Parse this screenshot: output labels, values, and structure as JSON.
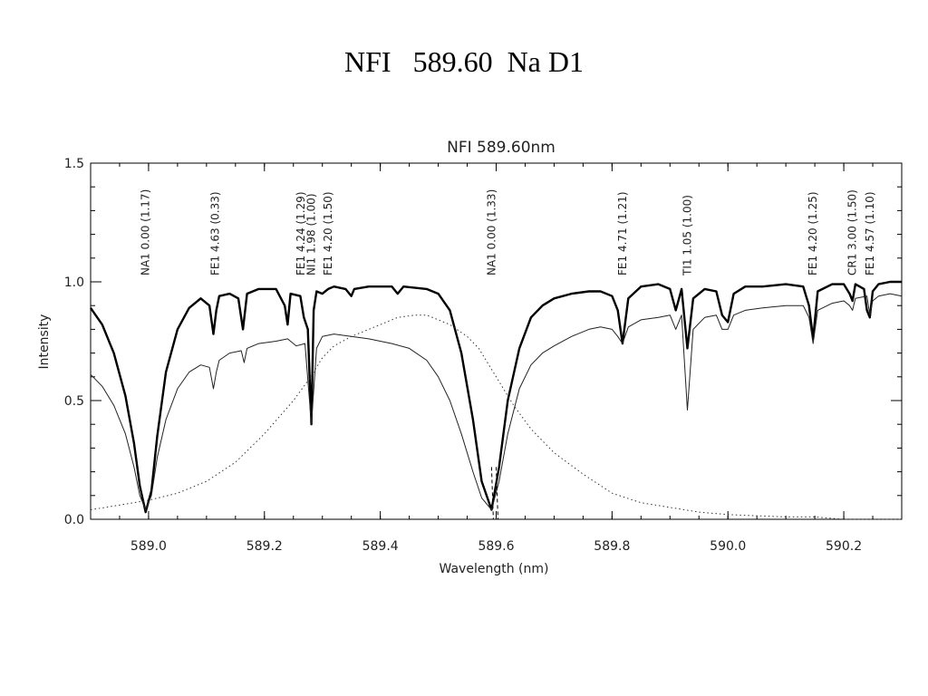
{
  "slide_title": "NFI   589.60  Na D1",
  "chart_data": {
    "type": "line",
    "title": "NFI 589.60nm",
    "xlabel": "Wavelength (nm)",
    "ylabel": "Intensity",
    "xlim": [
      588.9,
      590.3
    ],
    "ylim": [
      0.0,
      1.5
    ],
    "x_ticks": [
      589.0,
      589.2,
      589.4,
      589.6,
      589.8,
      590.0,
      590.2
    ],
    "x_tick_labels": [
      "589.0",
      "589.2",
      "589.4",
      "589.6",
      "589.8",
      "590.0",
      "590.2"
    ],
    "y_ticks": [
      0.0,
      0.5,
      1.0,
      1.5
    ],
    "y_tick_labels": [
      "0.0",
      "0.5",
      "1.0",
      "1.5"
    ],
    "line_annotations": [
      {
        "x": 588.995,
        "label": "NA1 0.00 (1.17)"
      },
      {
        "x": 589.115,
        "label": "FE1 4.63 (0.33)"
      },
      {
        "x": 589.263,
        "label": "FE1 4.24 (1.29)"
      },
      {
        "x": 589.281,
        "label": "NI1 1.98 (1.00)"
      },
      {
        "x": 589.31,
        "label": "FE1 4.20 (1.50)"
      },
      {
        "x": 589.592,
        "label": "NA1 0.00 (1.33)"
      },
      {
        "x": 589.818,
        "label": "FE1 4.71 (1.21)"
      },
      {
        "x": 589.93,
        "label": "TI1 1.05 (1.00)"
      },
      {
        "x": 590.147,
        "label": "FE1 4.20 (1.25)"
      },
      {
        "x": 590.215,
        "label": "CR1 3.00 (1.50)"
      },
      {
        "x": 590.245,
        "label": "FE1 4.57 (1.10)"
      }
    ],
    "series": [
      {
        "style": "thick",
        "x": [
          588.9,
          588.92,
          588.94,
          588.96,
          588.975,
          588.985,
          588.995,
          589.005,
          589.015,
          589.03,
          589.05,
          589.07,
          589.09,
          589.105,
          589.112,
          589.117,
          589.122,
          589.14,
          589.155,
          589.163,
          589.17,
          589.19,
          589.22,
          589.235,
          589.24,
          589.245,
          589.262,
          589.268,
          589.275,
          589.281,
          589.285,
          589.29,
          589.3,
          589.31,
          589.32,
          589.34,
          589.35,
          589.355,
          589.38,
          589.42,
          589.43,
          589.44,
          589.48,
          589.5,
          589.52,
          589.54,
          589.56,
          589.575,
          589.592,
          589.605,
          589.62,
          589.64,
          589.66,
          589.68,
          589.7,
          589.73,
          589.76,
          589.78,
          589.8,
          589.81,
          589.818,
          589.828,
          589.85,
          589.88,
          589.9,
          589.91,
          589.92,
          589.93,
          589.94,
          589.96,
          589.98,
          589.99,
          590.0,
          590.01,
          590.03,
          590.06,
          590.1,
          590.13,
          590.14,
          590.147,
          590.155,
          590.18,
          590.2,
          590.21,
          590.215,
          590.22,
          590.235,
          590.24,
          590.245,
          590.25,
          590.26,
          590.28,
          590.3
        ],
        "y": [
          0.89,
          0.82,
          0.7,
          0.52,
          0.32,
          0.14,
          0.03,
          0.12,
          0.35,
          0.62,
          0.8,
          0.89,
          0.93,
          0.9,
          0.78,
          0.88,
          0.94,
          0.95,
          0.93,
          0.8,
          0.95,
          0.97,
          0.97,
          0.9,
          0.82,
          0.95,
          0.94,
          0.85,
          0.8,
          0.4,
          0.88,
          0.96,
          0.95,
          0.97,
          0.98,
          0.97,
          0.94,
          0.97,
          0.98,
          0.98,
          0.95,
          0.98,
          0.97,
          0.95,
          0.88,
          0.7,
          0.42,
          0.16,
          0.04,
          0.22,
          0.5,
          0.72,
          0.85,
          0.9,
          0.93,
          0.95,
          0.96,
          0.96,
          0.94,
          0.88,
          0.74,
          0.93,
          0.98,
          0.99,
          0.97,
          0.88,
          0.97,
          0.72,
          0.93,
          0.97,
          0.96,
          0.86,
          0.83,
          0.95,
          0.98,
          0.98,
          0.99,
          0.98,
          0.9,
          0.76,
          0.96,
          0.99,
          0.99,
          0.95,
          0.92,
          0.99,
          0.97,
          0.88,
          0.85,
          0.96,
          0.99,
          1.0,
          1.0
        ]
      },
      {
        "style": "thin",
        "x": [
          588.9,
          588.92,
          588.94,
          588.96,
          588.975,
          588.985,
          588.995,
          589.005,
          589.015,
          589.03,
          589.05,
          589.07,
          589.09,
          589.105,
          589.112,
          589.117,
          589.122,
          589.14,
          589.16,
          589.165,
          589.17,
          589.19,
          589.22,
          589.24,
          589.255,
          589.27,
          589.281,
          589.29,
          589.3,
          589.32,
          589.35,
          589.38,
          589.42,
          589.45,
          589.48,
          589.5,
          589.52,
          589.54,
          589.56,
          589.575,
          589.592,
          589.605,
          589.62,
          589.64,
          589.66,
          589.68,
          589.7,
          589.73,
          589.76,
          589.78,
          589.8,
          589.81,
          589.818,
          589.828,
          589.85,
          589.88,
          589.9,
          589.91,
          589.92,
          589.93,
          589.94,
          589.96,
          589.98,
          589.99,
          590.0,
          590.01,
          590.03,
          590.06,
          590.1,
          590.13,
          590.14,
          590.147,
          590.155,
          590.18,
          590.2,
          590.21,
          590.215,
          590.22,
          590.24,
          590.245,
          590.25,
          590.26,
          590.28,
          590.3
        ],
        "y": [
          0.61,
          0.56,
          0.48,
          0.36,
          0.22,
          0.1,
          0.04,
          0.1,
          0.26,
          0.42,
          0.55,
          0.62,
          0.65,
          0.64,
          0.55,
          0.62,
          0.67,
          0.7,
          0.71,
          0.66,
          0.72,
          0.74,
          0.75,
          0.76,
          0.73,
          0.74,
          0.4,
          0.72,
          0.77,
          0.78,
          0.77,
          0.76,
          0.74,
          0.72,
          0.67,
          0.6,
          0.5,
          0.36,
          0.2,
          0.09,
          0.04,
          0.16,
          0.36,
          0.55,
          0.65,
          0.7,
          0.73,
          0.77,
          0.8,
          0.81,
          0.8,
          0.77,
          0.74,
          0.81,
          0.84,
          0.85,
          0.86,
          0.8,
          0.86,
          0.46,
          0.8,
          0.85,
          0.86,
          0.8,
          0.8,
          0.86,
          0.88,
          0.89,
          0.9,
          0.9,
          0.85,
          0.74,
          0.88,
          0.91,
          0.92,
          0.9,
          0.88,
          0.93,
          0.94,
          0.86,
          0.92,
          0.94,
          0.95,
          0.94
        ]
      },
      {
        "style": "dotted",
        "x": [
          588.9,
          588.95,
          589.0,
          589.05,
          589.1,
          589.15,
          589.2,
          589.25,
          589.28,
          589.3,
          589.32,
          589.35,
          589.38,
          589.4,
          589.43,
          589.46,
          589.48,
          589.5,
          589.52,
          589.55,
          589.57,
          589.6,
          589.63,
          589.66,
          589.7,
          589.75,
          589.8,
          589.85,
          589.9,
          589.95,
          590.0,
          590.05,
          590.1,
          590.15,
          590.2,
          590.25,
          590.3
        ],
        "y": [
          0.04,
          0.06,
          0.08,
          0.11,
          0.16,
          0.24,
          0.36,
          0.5,
          0.6,
          0.68,
          0.73,
          0.77,
          0.8,
          0.82,
          0.85,
          0.86,
          0.86,
          0.84,
          0.82,
          0.77,
          0.72,
          0.6,
          0.48,
          0.38,
          0.28,
          0.19,
          0.11,
          0.07,
          0.05,
          0.03,
          0.02,
          0.015,
          0.01,
          0.01,
          0.0,
          0.0,
          0.0
        ]
      }
    ],
    "marker_dashes": [
      589.592,
      589.6
    ]
  }
}
